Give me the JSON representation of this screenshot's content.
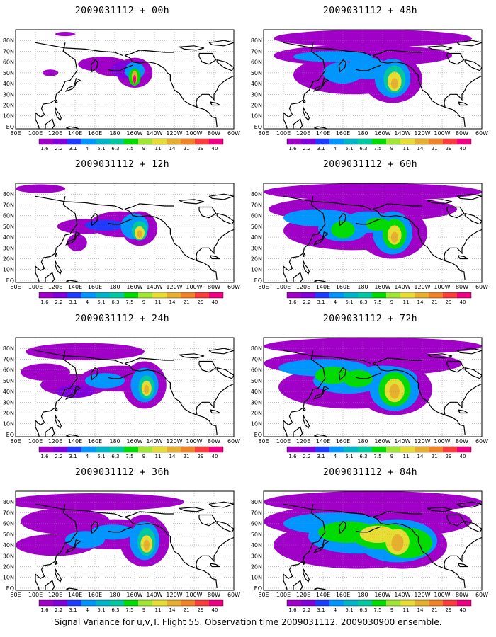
{
  "panels": [
    {
      "title": "2009031112 + 00h",
      "stage": 0
    },
    {
      "title": "2009031112 + 48h",
      "stage": 4
    },
    {
      "title": "2009031112 + 12h",
      "stage": 1
    },
    {
      "title": "2009031112 + 60h",
      "stage": 5
    },
    {
      "title": "2009031112 + 24h",
      "stage": 2
    },
    {
      "title": "2009031112 + 72h",
      "stage": 6
    },
    {
      "title": "2009031112 + 36h",
      "stage": 3
    },
    {
      "title": "2009031112 + 84h",
      "stage": 7
    }
  ],
  "lat_labels": [
    "80N",
    "70N",
    "60N",
    "50N",
    "40N",
    "30N",
    "20N",
    "10N",
    "EQ"
  ],
  "lon_labels": [
    "80E",
    "100E",
    "120E",
    "140E",
    "160E",
    "180",
    "160W",
    "140W",
    "120W",
    "100W",
    "80W",
    "60W"
  ],
  "colorbar": {
    "labels": [
      "1.6",
      "2.2",
      "3.1",
      "4",
      "5.1",
      "6.3",
      "7.5",
      "9",
      "11",
      "14",
      "21",
      "29",
      "40"
    ],
    "colors": [
      "#a000c8",
      "#8200dc",
      "#1e3cff",
      "#0096ff",
      "#00b4c8",
      "#00c8a0",
      "#00dc00",
      "#a0e632",
      "#e6dc32",
      "#e6af2d",
      "#f08228",
      "#fa3c3c",
      "#f00082"
    ]
  },
  "caption": "Signal Variance for u,v,T. Flight 55. Observation time 2009031112. 2009030900 ensemble."
}
